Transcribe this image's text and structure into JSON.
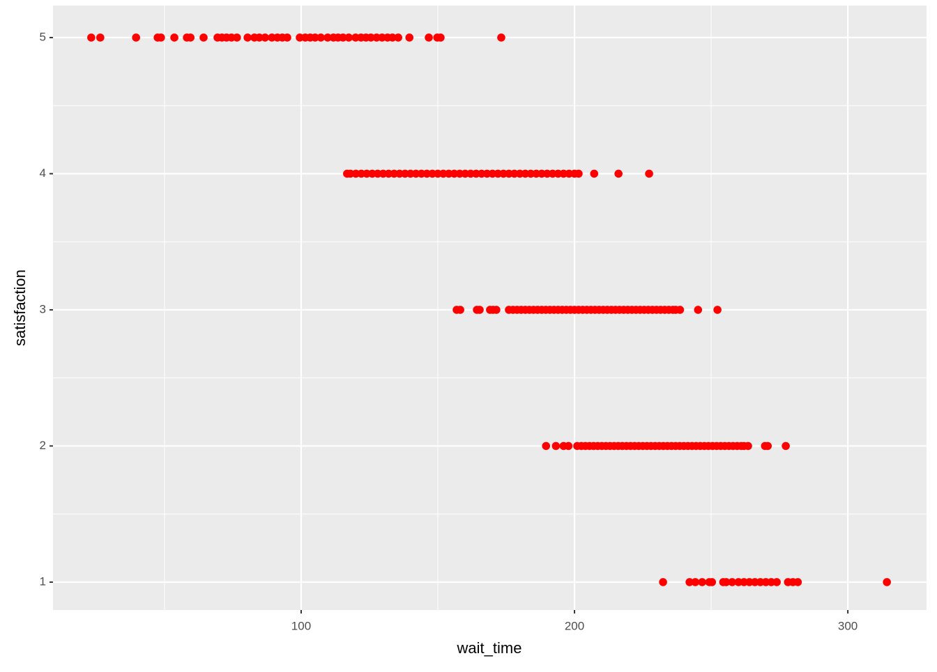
{
  "chart_data": {
    "type": "scatter",
    "x_label": "wait_time",
    "y_label": "satisfaction",
    "color": "#ff0000",
    "grid": true,
    "xlim": [
      9.2,
      328.8
    ],
    "ylim": [
      0.795,
      5.235
    ],
    "xticks": [
      100,
      200,
      300
    ],
    "yticks": [
      1,
      2,
      3,
      4,
      5
    ],
    "points": [
      [
        23.2,
        5
      ],
      [
        26.5,
        5
      ],
      [
        39.6,
        5
      ],
      [
        47.5,
        5
      ],
      [
        48.7,
        5
      ],
      [
        53.6,
        5
      ],
      [
        58.2,
        5
      ],
      [
        59.5,
        5
      ],
      [
        64.3,
        5
      ],
      [
        69.4,
        5
      ],
      [
        71,
        5
      ],
      [
        72.7,
        5
      ],
      [
        74.5,
        5
      ],
      [
        76.5,
        5
      ],
      [
        80.4,
        5
      ],
      [
        82.9,
        5
      ],
      [
        84.7,
        5
      ],
      [
        86.8,
        5
      ],
      [
        89.3,
        5
      ],
      [
        91.3,
        5
      ],
      [
        93.1,
        5
      ],
      [
        94.9,
        5
      ],
      [
        99.5,
        5
      ],
      [
        101.5,
        5
      ],
      [
        103.3,
        5
      ],
      [
        105.1,
        5
      ],
      [
        107.2,
        5
      ],
      [
        109.7,
        5
      ],
      [
        111.8,
        5
      ],
      [
        113.5,
        5
      ],
      [
        115.3,
        5
      ],
      [
        117.4,
        5
      ],
      [
        119.9,
        5
      ],
      [
        121.9,
        5
      ],
      [
        123.7,
        5
      ],
      [
        125.5,
        5
      ],
      [
        127.6,
        5
      ],
      [
        129.6,
        5
      ],
      [
        131.6,
        5
      ],
      [
        133.4,
        5
      ],
      [
        135.5,
        5
      ],
      [
        139.6,
        5
      ],
      [
        146.7,
        5
      ],
      [
        149.8,
        5
      ],
      [
        151,
        5
      ],
      [
        173.2,
        5
      ],
      [
        116.8,
        4
      ],
      [
        118,
        4
      ],
      [
        120,
        4
      ],
      [
        122,
        4
      ],
      [
        124,
        4
      ],
      [
        126,
        4
      ],
      [
        128,
        4
      ],
      [
        130,
        4
      ],
      [
        132,
        4
      ],
      [
        134,
        4
      ],
      [
        136,
        4
      ],
      [
        138,
        4
      ],
      [
        140,
        4
      ],
      [
        142,
        4
      ],
      [
        144,
        4
      ],
      [
        146,
        4
      ],
      [
        148,
        4
      ],
      [
        150,
        4
      ],
      [
        152,
        4
      ],
      [
        154,
        4
      ],
      [
        156,
        4
      ],
      [
        158,
        4
      ],
      [
        160,
        4
      ],
      [
        162,
        4
      ],
      [
        164,
        4
      ],
      [
        166,
        4
      ],
      [
        168,
        4
      ],
      [
        170,
        4
      ],
      [
        172,
        4
      ],
      [
        174,
        4
      ],
      [
        176,
        4
      ],
      [
        178,
        4
      ],
      [
        180,
        4
      ],
      [
        182,
        4
      ],
      [
        184,
        4
      ],
      [
        186,
        4
      ],
      [
        188,
        4
      ],
      [
        190,
        4
      ],
      [
        192,
        4
      ],
      [
        194,
        4
      ],
      [
        196,
        4
      ],
      [
        198,
        4
      ],
      [
        200,
        4
      ],
      [
        201.5,
        4
      ],
      [
        207.2,
        4
      ],
      [
        216.1,
        4
      ],
      [
        227.3,
        4
      ],
      [
        156.9,
        3
      ],
      [
        158.2,
        3
      ],
      [
        164.3,
        3
      ],
      [
        165.3,
        3
      ],
      [
        169.1,
        3
      ],
      [
        170.2,
        3
      ],
      [
        171.4,
        3
      ],
      [
        176,
        3
      ],
      [
        177.5,
        3
      ],
      [
        179,
        3
      ],
      [
        180.5,
        3
      ],
      [
        182,
        3
      ],
      [
        183.5,
        3
      ],
      [
        185,
        3
      ],
      [
        186.5,
        3
      ],
      [
        188,
        3
      ],
      [
        189.5,
        3
      ],
      [
        191,
        3
      ],
      [
        192.5,
        3
      ],
      [
        194,
        3
      ],
      [
        195.5,
        3
      ],
      [
        197,
        3
      ],
      [
        198.5,
        3
      ],
      [
        200,
        3
      ],
      [
        201.5,
        3
      ],
      [
        203,
        3
      ],
      [
        204.5,
        3
      ],
      [
        206,
        3
      ],
      [
        207.5,
        3
      ],
      [
        209,
        3
      ],
      [
        210.5,
        3
      ],
      [
        212,
        3
      ],
      [
        213.5,
        3
      ],
      [
        215,
        3
      ],
      [
        216.5,
        3
      ],
      [
        218,
        3
      ],
      [
        219.5,
        3
      ],
      [
        221,
        3
      ],
      [
        222.5,
        3
      ],
      [
        224,
        3
      ],
      [
        225.5,
        3
      ],
      [
        227,
        3
      ],
      [
        228.5,
        3
      ],
      [
        230,
        3
      ],
      [
        231.5,
        3
      ],
      [
        233,
        3
      ],
      [
        234.5,
        3
      ],
      [
        236,
        3
      ],
      [
        237,
        3
      ],
      [
        238.6,
        3
      ],
      [
        245.2,
        3
      ],
      [
        252.3,
        3
      ],
      [
        189.6,
        2
      ],
      [
        193.2,
        2
      ],
      [
        196,
        2
      ],
      [
        197.8,
        2
      ],
      [
        201,
        2
      ],
      [
        202.5,
        2
      ],
      [
        204,
        2
      ],
      [
        205.5,
        2
      ],
      [
        207,
        2
      ],
      [
        208.5,
        2
      ],
      [
        210,
        2
      ],
      [
        211.5,
        2
      ],
      [
        213,
        2
      ],
      [
        214.5,
        2
      ],
      [
        216,
        2
      ],
      [
        217.5,
        2
      ],
      [
        219,
        2
      ],
      [
        220.5,
        2
      ],
      [
        222,
        2
      ],
      [
        223.5,
        2
      ],
      [
        225,
        2
      ],
      [
        226.5,
        2
      ],
      [
        228,
        2
      ],
      [
        229.5,
        2
      ],
      [
        231,
        2
      ],
      [
        232.5,
        2
      ],
      [
        234,
        2
      ],
      [
        235.5,
        2
      ],
      [
        237,
        2
      ],
      [
        238.5,
        2
      ],
      [
        240,
        2
      ],
      [
        241.5,
        2
      ],
      [
        243,
        2
      ],
      [
        244.5,
        2
      ],
      [
        246,
        2
      ],
      [
        247.5,
        2
      ],
      [
        249,
        2
      ],
      [
        250.5,
        2
      ],
      [
        252,
        2
      ],
      [
        253.5,
        2
      ],
      [
        255,
        2
      ],
      [
        256.5,
        2
      ],
      [
        258,
        2
      ],
      [
        259.5,
        2
      ],
      [
        261,
        2
      ],
      [
        262,
        2
      ],
      [
        263.5,
        2
      ],
      [
        269.7,
        2
      ],
      [
        270.7,
        2
      ],
      [
        277.3,
        2
      ],
      [
        232.4,
        1
      ],
      [
        242.1,
        1
      ],
      [
        244.2,
        1
      ],
      [
        246.7,
        1
      ],
      [
        249.3,
        1
      ],
      [
        250.3,
        1
      ],
      [
        254.4,
        1
      ],
      [
        255.5,
        1
      ],
      [
        257.7,
        1
      ],
      [
        260,
        1
      ],
      [
        262,
        1
      ],
      [
        264,
        1
      ],
      [
        266,
        1
      ],
      [
        268,
        1
      ],
      [
        270,
        1
      ],
      [
        272,
        1
      ],
      [
        274,
        1
      ],
      [
        278.1,
        1
      ],
      [
        279.9,
        1
      ],
      [
        281.7,
        1
      ],
      [
        314.3,
        1
      ]
    ]
  }
}
